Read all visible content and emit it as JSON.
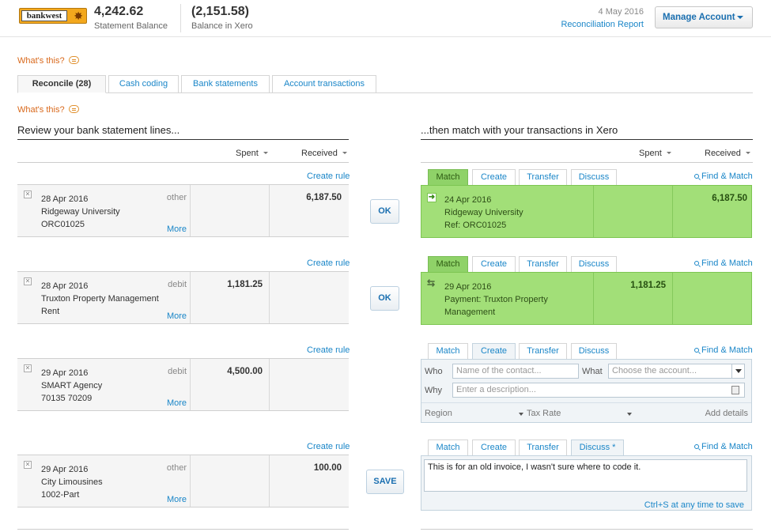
{
  "header": {
    "bank_logo_text": "bankwest",
    "statement_balance": "4,242.62",
    "statement_balance_label": "Statement Balance",
    "xero_balance": "(2,151.58)",
    "xero_balance_label": "Balance in Xero",
    "date": "4 May 2016",
    "reconciliation_report": "Reconciliation Report",
    "manage_account": "Manage Account"
  },
  "whats_this": "What's this?",
  "tabs": [
    {
      "label": "Reconcile (28)",
      "active": true
    },
    {
      "label": "Cash coding"
    },
    {
      "label": "Bank statements"
    },
    {
      "label": "Account transactions"
    }
  ],
  "left": {
    "title": "Review your bank statement lines...",
    "col_spent": "Spent",
    "col_received": "Received",
    "create_rule": "Create rule",
    "more": "More",
    "lines": [
      {
        "date": "28 Apr 2016",
        "payee": "Ridgeway University",
        "ref": "ORC01025",
        "type": "other",
        "spent": "",
        "received": "6,187.50"
      },
      {
        "date": "28 Apr 2016",
        "payee": "Truxton Property Management",
        "ref": "Rent",
        "type": "debit",
        "spent": "1,181.25",
        "received": ""
      },
      {
        "date": "29 Apr 2016",
        "payee": "SMART Agency",
        "ref": "70135 70209",
        "type": "debit",
        "spent": "4,500.00",
        "received": ""
      },
      {
        "date": "29 Apr 2016",
        "payee": "City Limousines",
        "ref": "1002-Part",
        "type": "other",
        "spent": "",
        "received": "100.00"
      }
    ]
  },
  "actions": {
    "ok": "OK",
    "save": "SAVE"
  },
  "right": {
    "title": "...then match with your transactions in Xero",
    "col_spent": "Spent",
    "col_received": "Received",
    "tab_match": "Match",
    "tab_create": "Create",
    "tab_transfer": "Transfer",
    "tab_discuss": "Discuss",
    "tab_discuss_edited": "Discuss *",
    "find_match": "Find & Match",
    "matches": [
      {
        "date": "24 Apr 2016",
        "line2": "Ridgeway University",
        "line3": "Ref: ORC01025",
        "spent": "",
        "received": "6,187.50"
      },
      {
        "date": "29 Apr 2016",
        "line2": "Payment: Truxton Property",
        "line3": "Management",
        "spent": "1,181.25",
        "received": ""
      }
    ],
    "create_form": {
      "who_label": "Who",
      "who_placeholder": "Name of the contact...",
      "what_label": "What",
      "what_placeholder": "Choose the account...",
      "why_label": "Why",
      "why_placeholder": "Enter a description...",
      "region": "Region",
      "tax_rate": "Tax Rate",
      "add_details": "Add details"
    },
    "discuss": {
      "text": "This is for an old invoice, I wasn't sure where to code it.",
      "hint": "Ctrl+S at any time to save"
    }
  }
}
